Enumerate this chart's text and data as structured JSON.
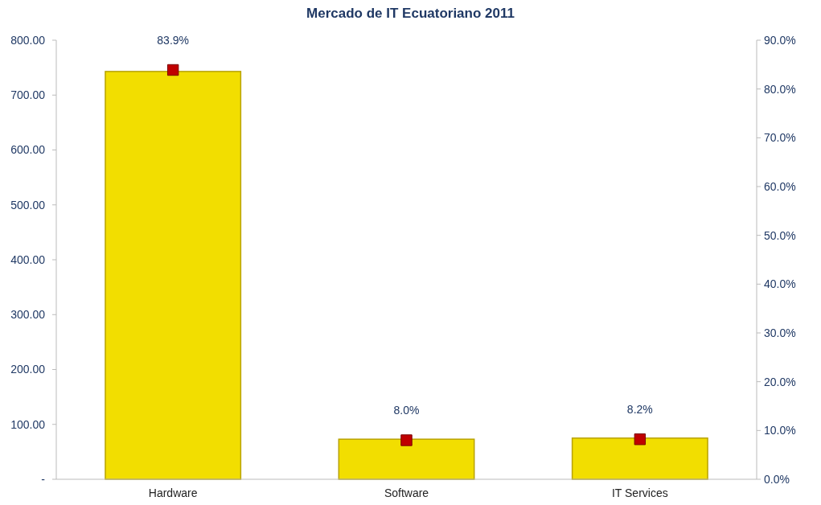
{
  "chart_data": {
    "type": "bar",
    "title": "Mercado de IT Ecuatoriano 2011",
    "categories": [
      "Hardware",
      "Software",
      "IT Services"
    ],
    "series": [
      {
        "color": "#f2de00",
        "values": [
          743,
          73,
          75
        ]
      },
      {
        "type": "scatter",
        "axis": "y2",
        "color": "#c00000",
        "values": [
          83.9,
          8.0,
          8.2
        ],
        "value_labels": [
          "83.9%",
          "8.0%",
          "8.2%"
        ]
      }
    ],
    "marker": "square",
    "ylim": [
      0,
      800
    ],
    "yticks": [
      {
        "value": 0,
        "label": "-"
      },
      {
        "value": 100,
        "label": "100.00"
      },
      {
        "value": 200,
        "label": "200.00"
      },
      {
        "value": 300,
        "label": "300.00"
      },
      {
        "value": 400,
        "label": "400.00"
      },
      {
        "value": 500,
        "label": "500.00"
      },
      {
        "value": 600,
        "label": "600.00"
      },
      {
        "value": 700,
        "label": "700.00"
      },
      {
        "value": 800,
        "label": "800.00"
      }
    ],
    "y2lim": [
      0,
      90
    ],
    "y2ticks": [
      {
        "value": 0,
        "label": "0.0%"
      },
      {
        "value": 10,
        "label": "10.0%"
      },
      {
        "value": 20,
        "label": "20.0%"
      },
      {
        "value": 30,
        "label": "30.0%"
      },
      {
        "value": 40,
        "label": "40.0%"
      },
      {
        "value": 50,
        "label": "50.0%"
      },
      {
        "value": 60,
        "label": "60.0%"
      },
      {
        "value": 70,
        "label": "70.0%"
      },
      {
        "value": 80,
        "label": "80.0%"
      },
      {
        "value": 90,
        "label": "90.0%"
      }
    ]
  }
}
